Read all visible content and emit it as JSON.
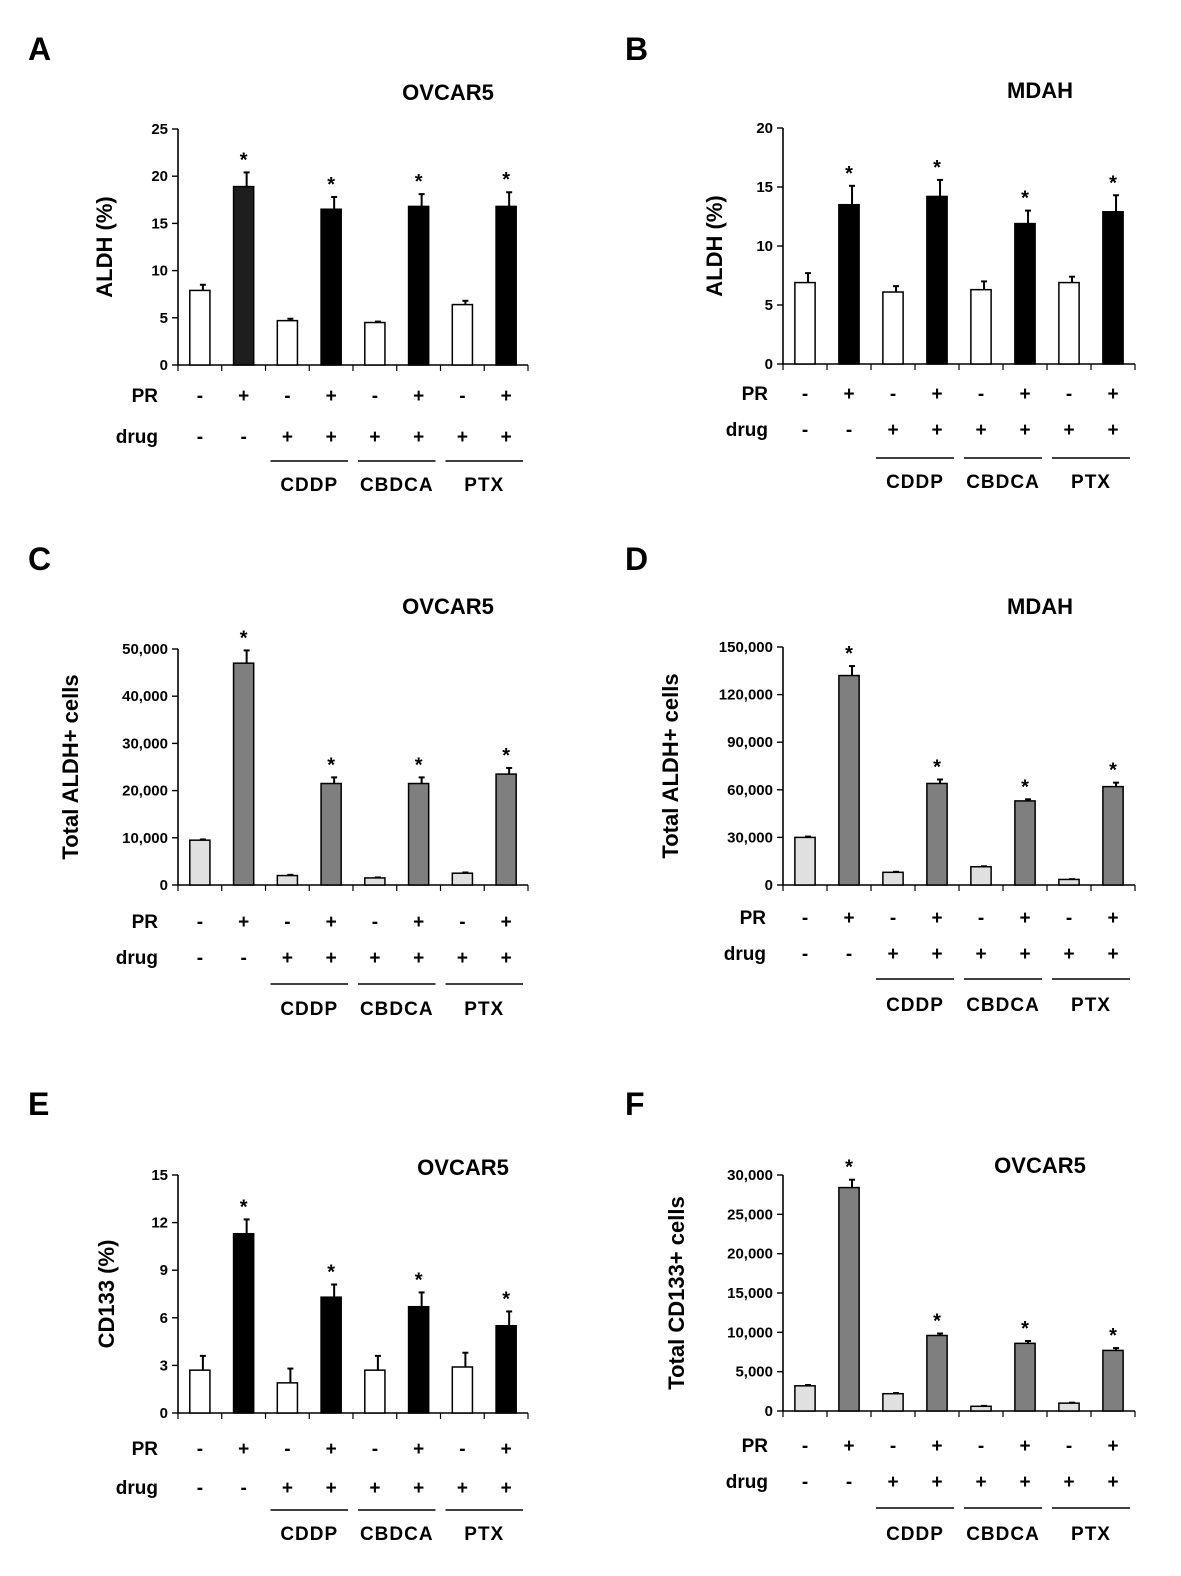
{
  "chart_data": [
    {
      "panel": "A",
      "type": "bar",
      "title": "OVCAR5",
      "ylabel": "ALDH (%)",
      "ylim": [
        0,
        25
      ],
      "yticks": [
        "0",
        "5",
        "10",
        "15",
        "20",
        "25"
      ],
      "values": [
        7.9,
        18.9,
        4.7,
        16.5,
        4.5,
        16.8,
        6.4,
        16.8
      ],
      "errors": [
        0.6,
        1.5,
        0.2,
        1.3,
        0.1,
        1.3,
        0.4,
        1.5
      ],
      "significant": [
        false,
        true,
        false,
        true,
        false,
        true,
        false,
        true
      ],
      "colors": [
        "#ffffff",
        "#1e1e1e",
        "#ffffff",
        "#000000",
        "#ffffff",
        "#000000",
        "#ffffff",
        "#000000"
      ],
      "pr": [
        "-",
        "+",
        "-",
        "+",
        "-",
        "+",
        "-",
        "+"
      ],
      "drug": [
        "-",
        "-",
        "+",
        "+",
        "+",
        "+",
        "+",
        "+"
      ],
      "groups": [
        "CDDP",
        "CBDCA",
        "PTX"
      ],
      "pr_label": "PR",
      "drug_label": "drug",
      "star": "*"
    },
    {
      "panel": "B",
      "type": "bar",
      "title": "MDAH",
      "ylabel": "ALDH (%)",
      "ylim": [
        0,
        20
      ],
      "yticks": [
        "0",
        "5",
        "10",
        "15",
        "20"
      ],
      "values": [
        6.9,
        13.5,
        6.1,
        14.2,
        6.3,
        11.9,
        6.9,
        12.9
      ],
      "errors": [
        0.8,
        1.6,
        0.5,
        1.4,
        0.7,
        1.1,
        0.5,
        1.4
      ],
      "significant": [
        false,
        true,
        false,
        true,
        false,
        true,
        false,
        true
      ],
      "colors": [
        "#ffffff",
        "#000000",
        "#ffffff",
        "#000000",
        "#ffffff",
        "#000000",
        "#ffffff",
        "#000000"
      ],
      "pr": [
        "-",
        "+",
        "-",
        "+",
        "-",
        "+",
        "-",
        "+"
      ],
      "drug": [
        "-",
        "-",
        "+",
        "+",
        "+",
        "+",
        "+",
        "+"
      ],
      "groups": [
        "CDDP",
        "CBDCA",
        "PTX"
      ],
      "pr_label": "PR",
      "drug_label": "drug",
      "star": "*"
    },
    {
      "panel": "C",
      "type": "bar",
      "title": "OVCAR5",
      "ylabel": "Total ALDH+ cells",
      "ylim": [
        0,
        50000
      ],
      "yticks": [
        "0",
        "10,000",
        "20,000",
        "30,000",
        "40,000",
        "50,000"
      ],
      "values": [
        9500,
        47000,
        2000,
        21500,
        1500,
        21500,
        2500,
        23500
      ],
      "errors": [
        150,
        2700,
        150,
        1300,
        100,
        1300,
        150,
        1300
      ],
      "significant": [
        false,
        true,
        false,
        true,
        false,
        true,
        false,
        true
      ],
      "colors": [
        "#e0e0e0",
        "#7f7f7f",
        "#e0e0e0",
        "#7f7f7f",
        "#e0e0e0",
        "#7f7f7f",
        "#e0e0e0",
        "#7f7f7f"
      ],
      "pr": [
        "-",
        "+",
        "-",
        "+",
        "-",
        "+",
        "-",
        "+"
      ],
      "drug": [
        "-",
        "-",
        "+",
        "+",
        "+",
        "+",
        "+",
        "+"
      ],
      "groups": [
        "CDDP",
        "CBDCA",
        "PTX"
      ],
      "pr_label": "PR",
      "drug_label": "drug",
      "star": "*"
    },
    {
      "panel": "D",
      "type": "bar",
      "title": "MDAH",
      "ylabel": "Total ALDH+ cells",
      "ylim": [
        0,
        150000
      ],
      "yticks": [
        "0",
        "30,000",
        "60,000",
        "90,000",
        "120,000",
        "150,000"
      ],
      "values": [
        30000,
        132000,
        8000,
        64000,
        11500,
        53000,
        3500,
        62000
      ],
      "errors": [
        500,
        6000,
        300,
        2500,
        300,
        1000,
        200,
        2500
      ],
      "significant": [
        false,
        true,
        false,
        true,
        false,
        true,
        false,
        true
      ],
      "colors": [
        "#e0e0e0",
        "#7f7f7f",
        "#e0e0e0",
        "#7f7f7f",
        "#e0e0e0",
        "#7f7f7f",
        "#e0e0e0",
        "#7f7f7f"
      ],
      "pr": [
        "-",
        "+",
        "-",
        "+",
        "-",
        "+",
        "-",
        "+"
      ],
      "drug": [
        "-",
        "-",
        "+",
        "+",
        "+",
        "+",
        "+",
        "+"
      ],
      "groups": [
        "CDDP",
        "CBDCA",
        "PTX"
      ],
      "pr_label": "PR",
      "drug_label": "drug",
      "star": "*"
    },
    {
      "panel": "E",
      "type": "bar",
      "title": "OVCAR5",
      "ylabel": "CD133 (%)",
      "ylim": [
        0,
        15
      ],
      "yticks": [
        "0",
        "3",
        "6",
        "9",
        "12",
        "15"
      ],
      "values": [
        2.7,
        11.3,
        1.9,
        7.3,
        2.7,
        6.7,
        2.9,
        5.5
      ],
      "errors": [
        0.9,
        0.9,
        0.9,
        0.8,
        0.9,
        0.9,
        0.9,
        0.9
      ],
      "significant": [
        false,
        true,
        false,
        true,
        false,
        true,
        false,
        true
      ],
      "colors": [
        "#ffffff",
        "#000000",
        "#ffffff",
        "#000000",
        "#ffffff",
        "#000000",
        "#ffffff",
        "#000000"
      ],
      "pr": [
        "-",
        "+",
        "-",
        "+",
        "-",
        "+",
        "-",
        "+"
      ],
      "drug": [
        "-",
        "-",
        "+",
        "+",
        "+",
        "+",
        "+",
        "+"
      ],
      "groups": [
        "CDDP",
        "CBDCA",
        "PTX"
      ],
      "pr_label": "PR",
      "drug_label": "drug",
      "star": "*"
    },
    {
      "panel": "F",
      "type": "bar",
      "title": "OVCAR5",
      "ylabel": "Total CD133+ cells",
      "ylim": [
        0,
        30000
      ],
      "yticks": [
        "0",
        "5,000",
        "10,000",
        "15,000",
        "20,000",
        "25,000",
        "30,000"
      ],
      "values": [
        3200,
        28400,
        2200,
        9600,
        600,
        8600,
        1000,
        7700
      ],
      "errors": [
        100,
        1000,
        80,
        250,
        50,
        300,
        60,
        300
      ],
      "significant": [
        false,
        true,
        false,
        true,
        false,
        true,
        false,
        true
      ],
      "colors": [
        "#e0e0e0",
        "#7f7f7f",
        "#e0e0e0",
        "#7f7f7f",
        "#e0e0e0",
        "#7f7f7f",
        "#e0e0e0",
        "#7f7f7f"
      ],
      "pr": [
        "-",
        "+",
        "-",
        "+",
        "-",
        "+",
        "-",
        "+"
      ],
      "drug": [
        "-",
        "-",
        "+",
        "+",
        "+",
        "+",
        "+",
        "+"
      ],
      "groups": [
        "CDDP",
        "CBDCA",
        "PTX"
      ],
      "pr_label": "PR",
      "drug_label": "drug",
      "star": "*"
    }
  ]
}
